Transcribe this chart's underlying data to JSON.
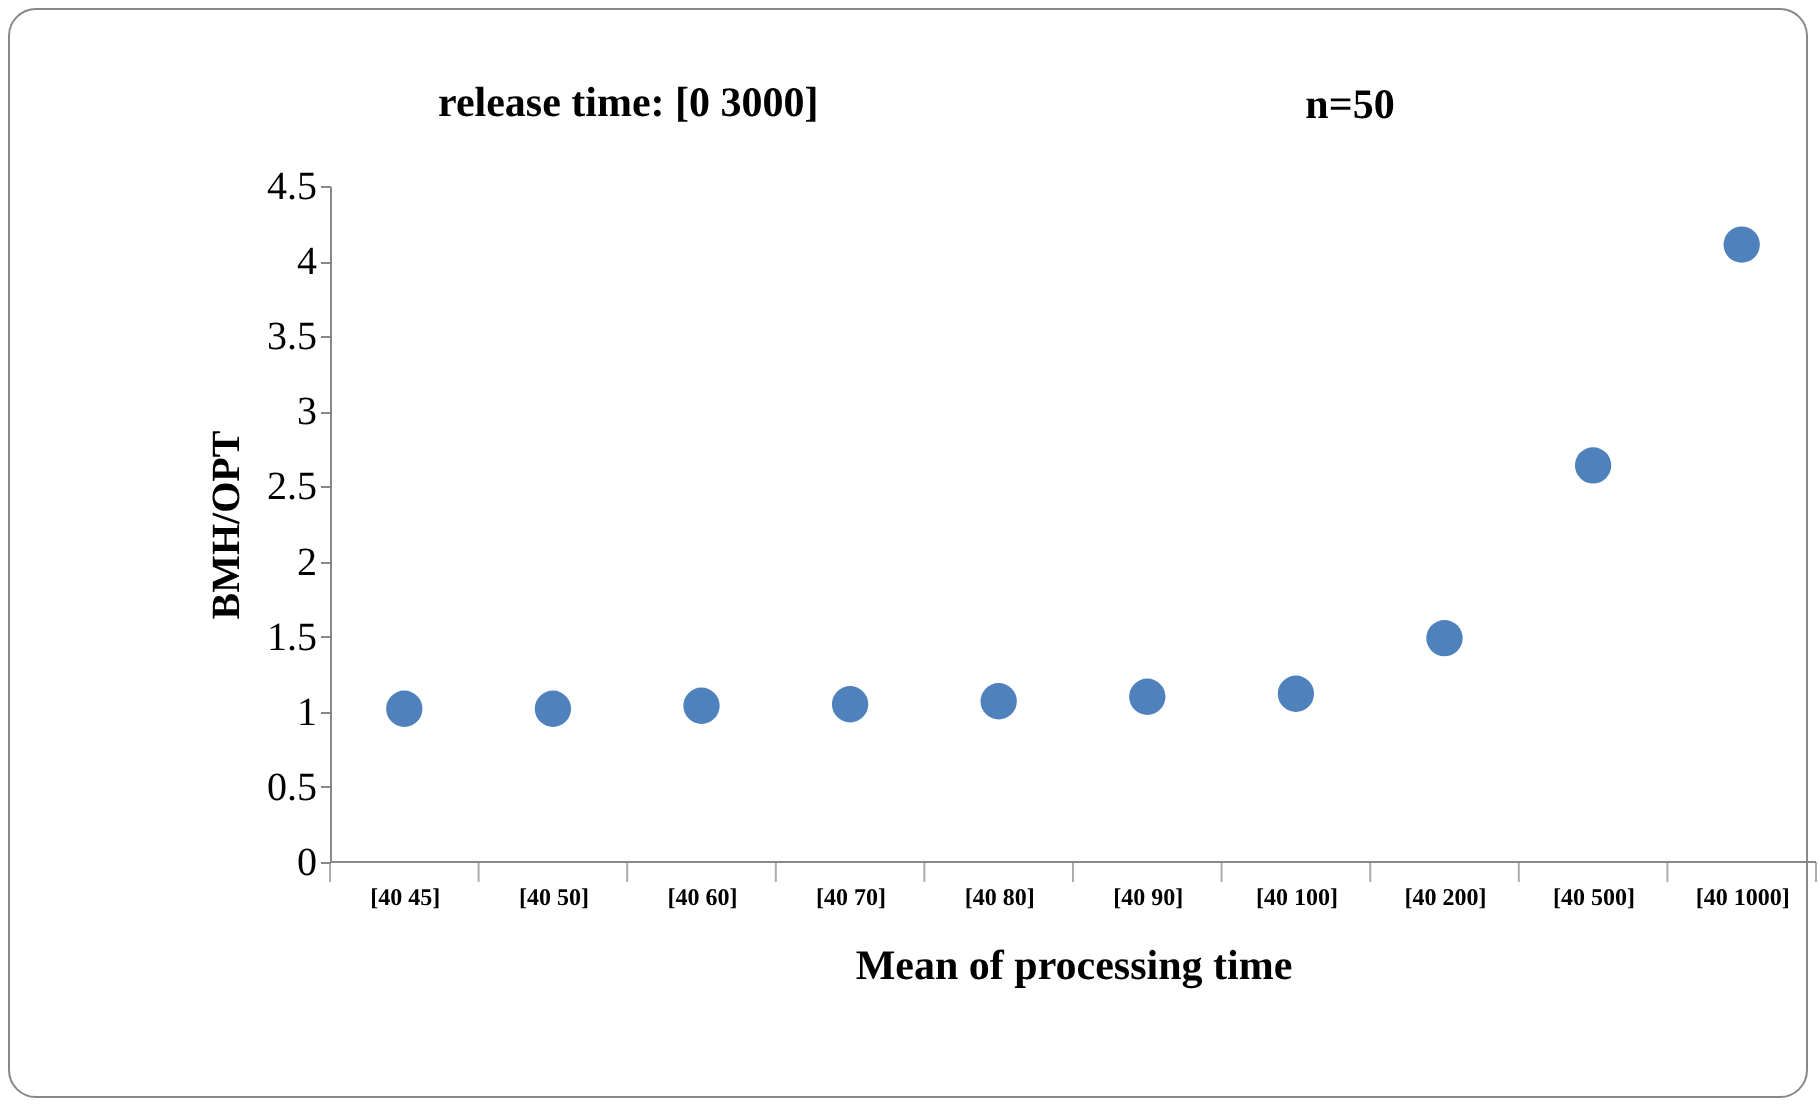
{
  "chart_data": {
    "type": "scatter",
    "title": "release time: [0 3000]",
    "annotations": [
      "n=50"
    ],
    "xlabel": "Mean of processing time",
    "ylabel": "BMH/OPT",
    "categories": [
      "[40 45]",
      "[40 50]",
      "[40 60]",
      "[40 70]",
      "[40 80]",
      "[40 90]",
      "[40 100]",
      "[40 200]",
      "[40 500]",
      "[40 1000]"
    ],
    "series": [
      {
        "color": "#4f81bd",
        "values": [
          1.02,
          1.02,
          1.04,
          1.05,
          1.07,
          1.1,
          1.12,
          1.49,
          2.64,
          4.11
        ]
      }
    ],
    "ylim": [
      0,
      4.5
    ],
    "yticks": [
      0,
      0.5,
      1,
      1.5,
      2,
      2.5,
      3,
      3.5,
      4,
      4.5
    ],
    "grid": false,
    "legend": false,
    "marker": "circle"
  }
}
